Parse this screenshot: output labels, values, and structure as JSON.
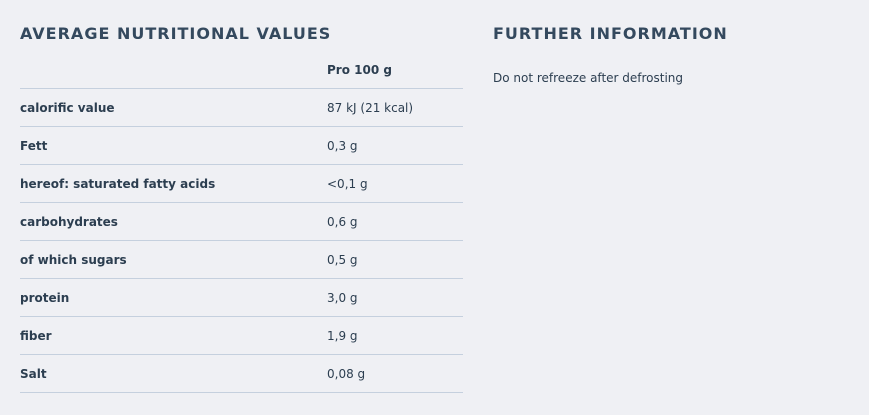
{
  "nutrition": {
    "title": "AVERAGE NUTRITIONAL VALUES",
    "column_header": "Pro 100 g",
    "rows": [
      [
        "calorific value",
        "87 kJ (21 kcal)"
      ],
      [
        "Fett",
        "0,3 g"
      ],
      [
        "hereof: saturated fatty acids",
        "<0,1 g"
      ],
      [
        "carbohydrates",
        "0,6 g"
      ],
      [
        "of which sugars",
        "0,5 g"
      ],
      [
        "protein",
        "3,0 g"
      ],
      [
        "fiber",
        "1,9 g"
      ],
      [
        "Salt",
        "0,08 g"
      ]
    ]
  },
  "further": {
    "title": "FURTHER INFORMATION",
    "text": "Do not refreeze after defrosting"
  }
}
